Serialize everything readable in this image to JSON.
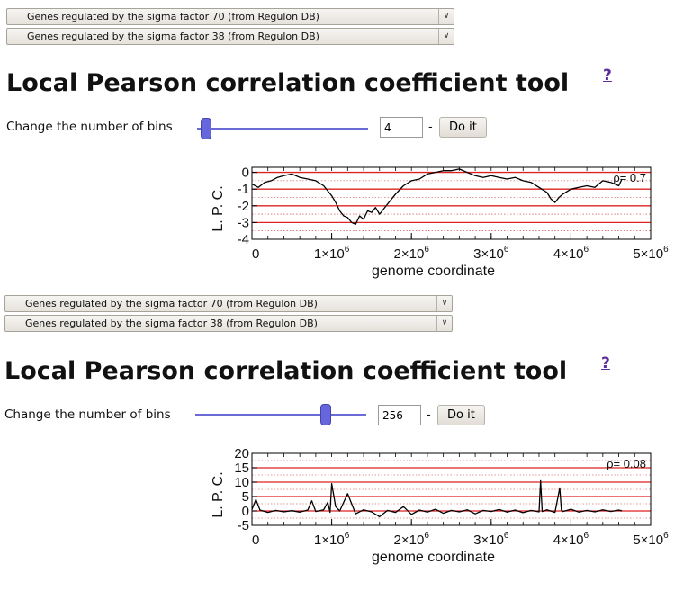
{
  "panels": [
    {
      "selects": [
        {
          "value": "Genes regulated by the sigma factor 70 (from Regulon DB)"
        },
        {
          "value": "Genes regulated by the sigma factor 38 (from Regulon DB)"
        }
      ],
      "title": "Local Pearson correlation coefficient tool",
      "help": "?",
      "bins_label": "Change the number of bins",
      "slider_fraction": 0.02,
      "bins_value": "4",
      "dash": "-",
      "do_label": "Do it"
    },
    {
      "selects": [
        {
          "value": "Genes regulated by the sigma factor 70 (from Regulon DB)"
        },
        {
          "value": "Genes regulated by the sigma factor 38 (from Regulon DB)"
        }
      ],
      "title": "Local Pearson correlation coefficient tool",
      "help": "?",
      "bins_label": "Change the number of bins",
      "slider_fraction": 0.78,
      "bins_value": "256",
      "dash": "-",
      "do_label": "Do it"
    }
  ],
  "chart_data": [
    {
      "type": "line",
      "xlabel": "genome coordinate",
      "ylabel": "L. P. C.",
      "xlim": [
        0,
        5000000
      ],
      "ylim": [
        -4,
        0.3
      ],
      "xticks": [
        {
          "value": 0,
          "label": "0"
        },
        {
          "value": 1000000,
          "label": "1×10",
          "sup": "6"
        },
        {
          "value": 2000000,
          "label": "2×10",
          "sup": "6"
        },
        {
          "value": 3000000,
          "label": "3×10",
          "sup": "6"
        },
        {
          "value": 4000000,
          "label": "4×10",
          "sup": "6"
        },
        {
          "value": 5000000,
          "label": "5×10",
          "sup": "6"
        }
      ],
      "yticks": [
        {
          "value": 0,
          "label": "0"
        },
        {
          "value": -1,
          "label": "-1"
        },
        {
          "value": -2,
          "label": "-2"
        },
        {
          "value": -3,
          "label": "-3"
        },
        {
          "value": -4,
          "label": "-4"
        }
      ],
      "red_lines": [
        0,
        -1,
        -2,
        -3
      ],
      "annotation": "ρ= 0.7",
      "x": [
        0,
        80000,
        160000,
        240000,
        320000,
        400000,
        500000,
        600000,
        700000,
        800000,
        900000,
        1000000,
        1050000,
        1100000,
        1150000,
        1200000,
        1250000,
        1300000,
        1350000,
        1400000,
        1450000,
        1500000,
        1550000,
        1600000,
        1700000,
        1800000,
        1900000,
        2000000,
        2100000,
        2200000,
        2300000,
        2400000,
        2500000,
        2600000,
        2700000,
        2800000,
        2900000,
        3000000,
        3100000,
        3200000,
        3300000,
        3400000,
        3500000,
        3600000,
        3700000,
        3750000,
        3800000,
        3850000,
        3900000,
        4000000,
        4100000,
        4200000,
        4300000,
        4400000,
        4500000,
        4600000,
        4640000
      ],
      "y": [
        -0.7,
        -0.9,
        -0.6,
        -0.5,
        -0.3,
        -0.2,
        -0.1,
        -0.3,
        -0.4,
        -0.5,
        -0.8,
        -1.4,
        -1.8,
        -2.3,
        -2.6,
        -2.7,
        -3.0,
        -3.1,
        -2.6,
        -2.8,
        -2.3,
        -2.4,
        -2.1,
        -2.5,
        -1.9,
        -1.3,
        -0.8,
        -0.5,
        -0.4,
        -0.1,
        0.0,
        0.1,
        0.1,
        0.2,
        0.0,
        -0.2,
        -0.3,
        -0.2,
        -0.3,
        -0.4,
        -0.3,
        -0.5,
        -0.6,
        -0.9,
        -1.2,
        -1.6,
        -1.8,
        -1.5,
        -1.3,
        -1.0,
        -0.9,
        -0.8,
        -0.9,
        -0.5,
        -0.6,
        -0.8,
        -0.4
      ]
    },
    {
      "type": "line",
      "xlabel": "genome coordinate",
      "ylabel": "L. P. C.",
      "xlim": [
        0,
        5000000
      ],
      "ylim": [
        -5,
        20
      ],
      "xticks": [
        {
          "value": 0,
          "label": "0"
        },
        {
          "value": 1000000,
          "label": "1×10",
          "sup": "6"
        },
        {
          "value": 2000000,
          "label": "2×10",
          "sup": "6"
        },
        {
          "value": 3000000,
          "label": "3×10",
          "sup": "6"
        },
        {
          "value": 4000000,
          "label": "4×10",
          "sup": "6"
        },
        {
          "value": 5000000,
          "label": "5×10",
          "sup": "6"
        }
      ],
      "yticks": [
        {
          "value": 20,
          "label": "20"
        },
        {
          "value": 15,
          "label": "15"
        },
        {
          "value": 10,
          "label": "10"
        },
        {
          "value": 5,
          "label": "5"
        },
        {
          "value": 0,
          "label": "0"
        },
        {
          "value": -5,
          "label": "-5"
        }
      ],
      "red_lines": [
        15,
        10,
        5,
        0
      ],
      "annotation": "ρ= 0.08",
      "x": [
        0,
        50000,
        100000,
        200000,
        300000,
        400000,
        500000,
        600000,
        700000,
        750000,
        800000,
        900000,
        950000,
        980000,
        1000000,
        1050000,
        1100000,
        1200000,
        1300000,
        1400000,
        1500000,
        1600000,
        1700000,
        1800000,
        1900000,
        2000000,
        2100000,
        2200000,
        2300000,
        2400000,
        2500000,
        2600000,
        2700000,
        2800000,
        2900000,
        3000000,
        3100000,
        3200000,
        3300000,
        3400000,
        3500000,
        3600000,
        3620000,
        3640000,
        3700000,
        3800000,
        3860000,
        3880000,
        3900000,
        4000000,
        4100000,
        4200000,
        4300000,
        4400000,
        4500000,
        4600000,
        4640000
      ],
      "y": [
        0.5,
        4.0,
        0.3,
        -0.5,
        0.2,
        -0.3,
        0.1,
        -0.4,
        0.3,
        3.5,
        -0.2,
        0.4,
        3.0,
        -0.5,
        9.5,
        1.5,
        0.0,
        6.0,
        -1.0,
        0.4,
        -0.3,
        -2.0,
        0.2,
        -0.5,
        1.5,
        -1.2,
        0.3,
        -0.4,
        0.6,
        -0.8,
        0.2,
        -0.3,
        0.4,
        -1.0,
        0.2,
        -0.2,
        0.5,
        -0.4,
        0.3,
        -0.6,
        0.2,
        -0.3,
        10.5,
        -0.2,
        0.4,
        -0.5,
        8.0,
        0.3,
        -0.2,
        0.6,
        -0.4,
        0.2,
        -0.3,
        0.4,
        -0.2,
        0.3,
        0.0
      ]
    }
  ]
}
